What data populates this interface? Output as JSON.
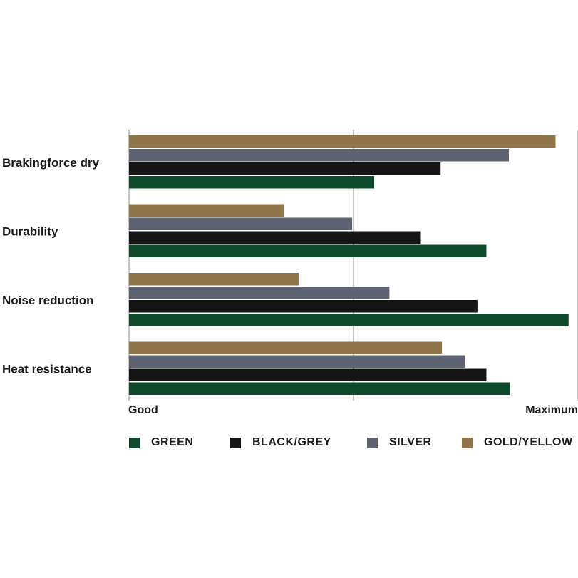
{
  "chart_data": {
    "type": "bar",
    "orientation": "horizontal",
    "categories": [
      "Brakingforce dry",
      "Durability",
      "Noise reduction",
      "Heat resistance"
    ],
    "series": [
      {
        "name": "GOLD/YELLOW",
        "color": "#8f7548",
        "values": [
          0.95,
          0.345,
          0.378,
          0.697
        ]
      },
      {
        "name": "SILVER",
        "color": "#5d6370",
        "values": [
          0.846,
          0.497,
          0.58,
          0.748
        ]
      },
      {
        "name": "BLACK/GREY",
        "color": "#151515",
        "values": [
          0.694,
          0.65,
          0.776,
          0.796
        ]
      },
      {
        "name": "GREEN",
        "color": "#0d4a2c",
        "values": [
          0.546,
          0.796,
          0.979,
          0.848
        ]
      }
    ],
    "xlim": [
      0,
      1
    ],
    "x_tick_labels": {
      "min": "Good",
      "max": "Maximum"
    },
    "grid": true,
    "legend": {
      "placement": "bottom",
      "order": [
        "GREEN",
        "BLACK/GREY",
        "SILVER",
        "GOLD/YELLOW"
      ]
    },
    "title": "",
    "xlabel": "",
    "ylabel": ""
  }
}
